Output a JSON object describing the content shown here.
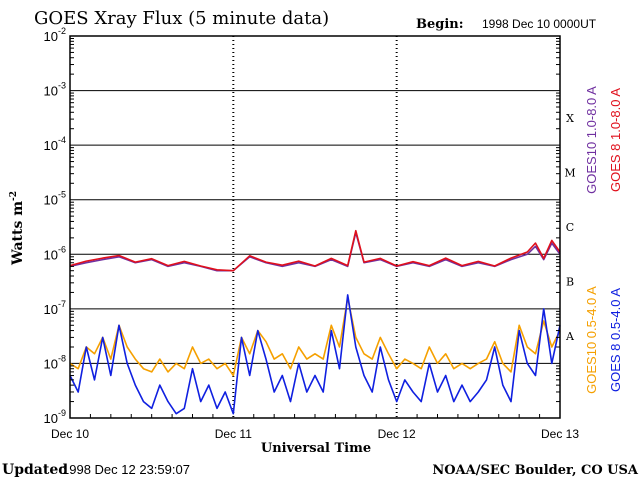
{
  "chart_data": {
    "type": "line",
    "title": "GOES Xray Flux (5 minute data)",
    "begin_label": "Begin:",
    "begin_value": "1998 Dec 10 0000UT",
    "ylabel": "Watts m",
    "ylabel_exp": "-2",
    "xlabel": "Universal Time",
    "y_scale": "log",
    "ylim": [
      1e-09,
      0.01
    ],
    "y_ticks": [
      {
        "base": "10",
        "exp": "-9",
        "value": 1e-09
      },
      {
        "base": "10",
        "exp": "-8",
        "value": 1e-08
      },
      {
        "base": "10",
        "exp": "-7",
        "value": 1e-07
      },
      {
        "base": "10",
        "exp": "-6",
        "value": 1e-06
      },
      {
        "base": "10",
        "exp": "-5",
        "value": 1e-05
      },
      {
        "base": "10",
        "exp": "-4",
        "value": 0.0001
      },
      {
        "base": "10",
        "exp": "-3",
        "value": 0.001
      },
      {
        "base": "10",
        "exp": "-2",
        "value": 0.01
      }
    ],
    "x_ticks": [
      "Dec 10",
      "Dec 11",
      "Dec 12",
      "Dec 13"
    ],
    "xlim": [
      0,
      3
    ],
    "grid": true,
    "flare_classes": [
      {
        "label": "A",
        "min": 1e-08
      },
      {
        "label": "B",
        "min": 1e-07
      },
      {
        "label": "C",
        "min": 1e-06
      },
      {
        "label": "M",
        "min": 1e-05
      },
      {
        "label": "X",
        "min": 0.0001
      }
    ],
    "legend_placement": "right",
    "series": [
      {
        "name": "GOES10 1.0-8.0 A",
        "color": "#7030a0",
        "x": [
          0,
          0.1,
          0.2,
          0.3,
          0.4,
          0.5,
          0.6,
          0.7,
          0.8,
          0.9,
          1.0,
          1.1,
          1.2,
          1.3,
          1.4,
          1.5,
          1.6,
          1.7,
          1.75,
          1.8,
          1.9,
          2.0,
          2.1,
          2.2,
          2.3,
          2.4,
          2.5,
          2.6,
          2.7,
          2.8,
          2.85,
          2.9,
          2.95,
          3.0
        ],
        "values": [
          6e-07,
          7e-07,
          8e-07,
          9e-07,
          7e-07,
          8e-07,
          6e-07,
          7e-07,
          6e-07,
          5e-07,
          5e-07,
          9e-07,
          7e-07,
          6e-07,
          7e-07,
          6e-07,
          8e-07,
          6e-07,
          2.5e-06,
          7e-07,
          8e-07,
          6e-07,
          7e-07,
          6e-07,
          8e-07,
          6e-07,
          7e-07,
          6e-07,
          8e-07,
          1e-06,
          1.4e-06,
          8e-07,
          1.6e-06,
          1e-06
        ]
      },
      {
        "name": "GOES 8 1.0-8.0 A",
        "color": "#e0101c",
        "x": [
          0,
          0.1,
          0.2,
          0.3,
          0.4,
          0.5,
          0.6,
          0.7,
          0.8,
          0.9,
          1.0,
          1.1,
          1.2,
          1.3,
          1.4,
          1.5,
          1.6,
          1.7,
          1.75,
          1.8,
          1.9,
          2.0,
          2.1,
          2.2,
          2.3,
          2.4,
          2.5,
          2.6,
          2.7,
          2.8,
          2.85,
          2.9,
          2.95,
          3.0
        ],
        "values": [
          6.2e-07,
          7.5e-07,
          8.5e-07,
          9.5e-07,
          7.2e-07,
          8.3e-07,
          6.2e-07,
          7.4e-07,
          6.1e-07,
          5.2e-07,
          5e-07,
          9.4e-07,
          7.2e-07,
          6.3e-07,
          7.5e-07,
          6.1e-07,
          8.4e-07,
          6.2e-07,
          2.7e-06,
          7.2e-07,
          8.4e-07,
          6.1e-07,
          7.3e-07,
          6.2e-07,
          8.5e-07,
          6.2e-07,
          7.4e-07,
          6.1e-07,
          8.5e-07,
          1.1e-06,
          1.6e-06,
          8.4e-07,
          1.8e-06,
          1.1e-06
        ]
      },
      {
        "name": "GOES10 0.5-4.0 A",
        "color": "#f5a000",
        "x": [
          0,
          0.05,
          0.1,
          0.15,
          0.2,
          0.25,
          0.3,
          0.35,
          0.4,
          0.45,
          0.5,
          0.55,
          0.6,
          0.65,
          0.7,
          0.75,
          0.8,
          0.85,
          0.9,
          0.95,
          1.0,
          1.05,
          1.1,
          1.15,
          1.2,
          1.25,
          1.3,
          1.35,
          1.4,
          1.45,
          1.5,
          1.55,
          1.6,
          1.65,
          1.7,
          1.75,
          1.8,
          1.85,
          1.9,
          1.95,
          2.0,
          2.05,
          2.1,
          2.15,
          2.2,
          2.25,
          2.3,
          2.35,
          2.4,
          2.45,
          2.5,
          2.55,
          2.6,
          2.65,
          2.7,
          2.75,
          2.8,
          2.85,
          2.9,
          2.95,
          3.0
        ],
        "values": [
          1e-08,
          8e-09,
          2e-08,
          1.5e-08,
          3e-08,
          1.2e-08,
          5e-08,
          2e-08,
          1.2e-08,
          8e-09,
          7e-09,
          1.2e-08,
          7e-09,
          1e-08,
          8e-09,
          2e-08,
          1e-08,
          1.2e-08,
          8e-09,
          1e-08,
          6e-09,
          3e-08,
          1.5e-08,
          4e-08,
          2.5e-08,
          1.2e-08,
          1.5e-08,
          8e-09,
          2e-08,
          1.2e-08,
          1.5e-08,
          1.2e-08,
          5e-08,
          2e-08,
          1.6e-07,
          3e-08,
          1.5e-08,
          1.2e-08,
          3e-08,
          1.5e-08,
          8e-09,
          1.2e-08,
          1e-08,
          8e-09,
          2e-08,
          1e-08,
          1.5e-08,
          8e-09,
          1e-08,
          8e-09,
          1e-08,
          1.2e-08,
          2.5e-08,
          1e-08,
          7e-09,
          5e-08,
          2e-08,
          1.5e-08,
          6e-08,
          2e-08,
          4e-08
        ]
      },
      {
        "name": "GOES 8 0.5-4.0 A",
        "color": "#1020e0",
        "x": [
          0,
          0.05,
          0.1,
          0.15,
          0.2,
          0.25,
          0.3,
          0.35,
          0.4,
          0.45,
          0.5,
          0.55,
          0.6,
          0.65,
          0.7,
          0.75,
          0.8,
          0.85,
          0.9,
          0.95,
          1.0,
          1.05,
          1.1,
          1.15,
          1.2,
          1.25,
          1.3,
          1.35,
          1.4,
          1.45,
          1.5,
          1.55,
          1.6,
          1.65,
          1.7,
          1.75,
          1.8,
          1.85,
          1.9,
          1.95,
          2.0,
          2.05,
          2.1,
          2.15,
          2.2,
          2.25,
          2.3,
          2.35,
          2.4,
          2.45,
          2.5,
          2.55,
          2.6,
          2.65,
          2.7,
          2.75,
          2.8,
          2.85,
          2.9,
          2.95,
          3.0
        ],
        "values": [
          6e-09,
          3e-09,
          2e-08,
          5e-09,
          3e-08,
          6e-09,
          5e-08,
          1e-08,
          4e-09,
          2e-09,
          1.5e-09,
          4e-09,
          2e-09,
          1.2e-09,
          1.5e-09,
          8e-09,
          2e-09,
          4e-09,
          1.5e-09,
          3e-09,
          1.2e-09,
          3e-08,
          6e-09,
          4e-08,
          1.2e-08,
          3e-09,
          6e-09,
          2e-09,
          1e-08,
          3e-09,
          6e-09,
          3e-09,
          4e-08,
          8e-09,
          1.8e-07,
          2e-08,
          6e-09,
          3e-09,
          2e-08,
          5e-09,
          2e-09,
          5e-09,
          3e-09,
          2e-09,
          1e-08,
          3e-09,
          6e-09,
          2e-09,
          4e-09,
          2e-09,
          3e-09,
          5e-09,
          2e-08,
          4e-09,
          2e-09,
          4e-08,
          1e-08,
          6e-09,
          1e-07,
          1e-08,
          5e-08
        ]
      }
    ],
    "footer_left_label": "Updated",
    "footer_left_value": "1998 Dec 12 23:59:07",
    "footer_right": "NOAA/SEC Boulder, CO USA"
  }
}
